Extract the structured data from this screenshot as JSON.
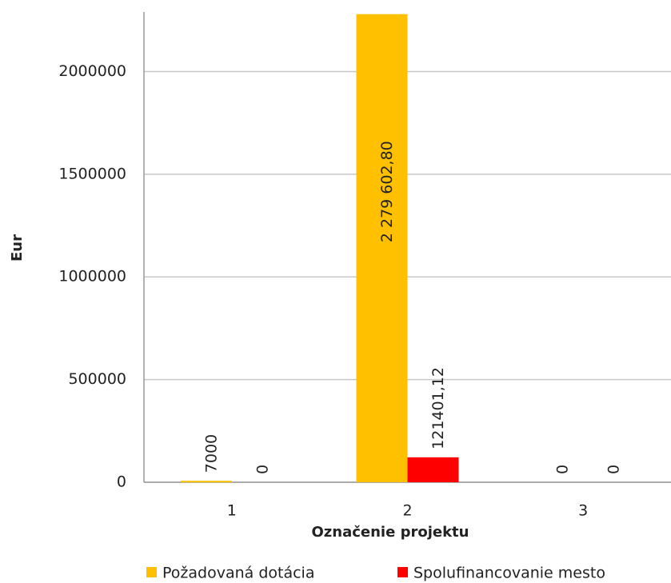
{
  "chart_data": {
    "type": "bar",
    "categories": [
      "1",
      "2",
      "3"
    ],
    "series": [
      {
        "name": "Požadovaná dotácia",
        "color": "#ffc000",
        "values": [
          7000,
          2279602.8,
          0
        ],
        "value_labels": [
          "7000",
          "2 279 602,80",
          "0"
        ]
      },
      {
        "name": "Spolufinancovanie mesto",
        "color": "#ff0000",
        "values": [
          0,
          121401.12,
          0
        ],
        "value_labels": [
          "0",
          "121401,12",
          "0"
        ]
      }
    ],
    "ylim": [
      0,
      2290000
    ],
    "yticks": [
      0,
      500000,
      1000000,
      1500000,
      2000000
    ],
    "grid": true,
    "y_label": "Eur",
    "x_label": "Označenie projektu",
    "legend": "bottom"
  }
}
